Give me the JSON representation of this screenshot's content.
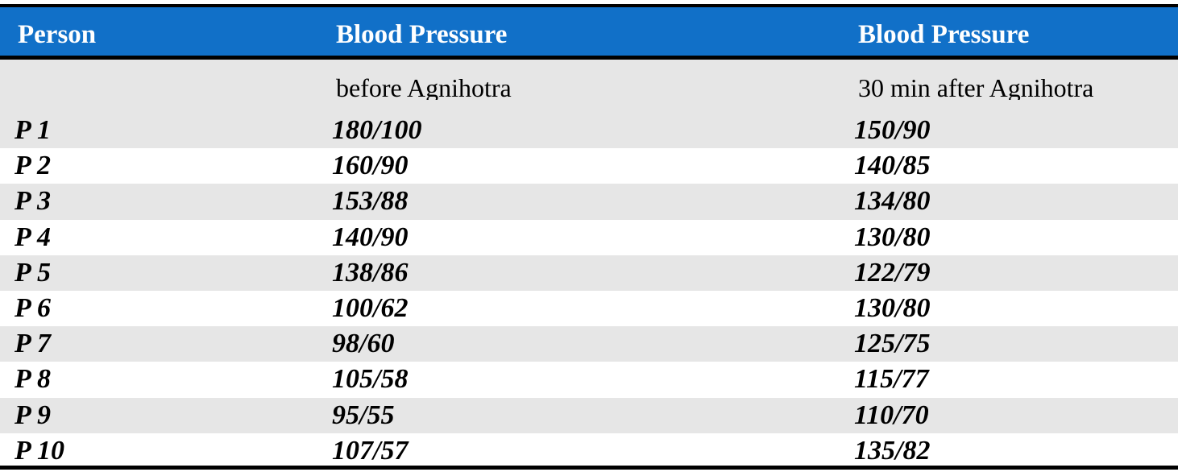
{
  "table": {
    "headers": [
      "Person",
      "Blood Pressure",
      "Blood Pressure"
    ],
    "subheaders": [
      "",
      "before Agnihotra",
      "30 min  after Agnihotra"
    ],
    "rows": [
      [
        "P 1",
        "180/100",
        "150/90"
      ],
      [
        "P 2",
        "160/90",
        "140/85"
      ],
      [
        "P 3",
        "153/88",
        "134/80"
      ],
      [
        "P 4",
        "140/90",
        "130/80"
      ],
      [
        "P 5",
        "138/86",
        "122/79"
      ],
      [
        "P 6",
        "100/62",
        "130/80"
      ],
      [
        "P 7",
        "98/60",
        "125/75"
      ],
      [
        "P 8",
        "105/58",
        "115/77"
      ],
      [
        "P 9",
        "95/55",
        "110/70"
      ],
      [
        "P 10",
        "107/57",
        "135/82"
      ]
    ]
  },
  "colors": {
    "header_bg": "#1170c8",
    "header_text": "#ffffff",
    "shaded_row": "#e6e6e6",
    "rule": "#000000"
  }
}
